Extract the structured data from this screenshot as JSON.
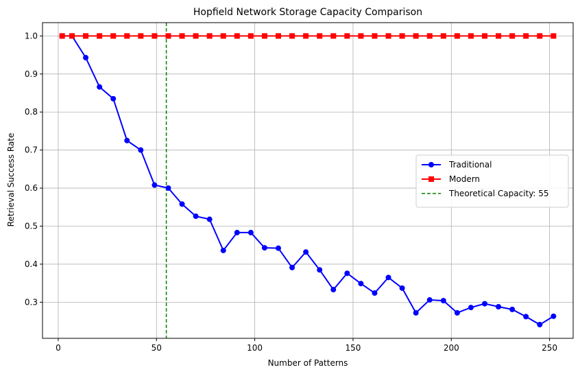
{
  "chart_data": {
    "type": "line",
    "title": "Hopfield Network Storage Capacity Comparison",
    "xlabel": "Number of Patterns",
    "ylabel": "Retrieval Success Rate",
    "xlim": [
      -8,
      262
    ],
    "ylim": [
      0.205,
      1.035
    ],
    "xticks": [
      0,
      50,
      100,
      150,
      200,
      250
    ],
    "yticks": [
      0.3,
      0.4,
      0.5,
      0.6,
      0.7,
      0.8,
      0.9,
      1.0
    ],
    "grid": true,
    "legend_position": "center-right",
    "x": [
      2,
      7,
      14,
      21,
      28,
      35,
      42,
      49,
      56,
      63,
      70,
      77,
      84,
      91,
      98,
      105,
      112,
      119,
      126,
      133,
      140,
      147,
      154,
      161,
      168,
      175,
      182,
      189,
      196,
      203,
      210,
      217,
      224,
      231,
      238,
      245,
      252
    ],
    "series": [
      {
        "name": "Traditional",
        "color": "#0000ff",
        "marker": "circle",
        "values": [
          1.0,
          1.0,
          0.943,
          0.866,
          0.835,
          0.725,
          0.7,
          0.608,
          0.6,
          0.558,
          0.526,
          0.518,
          0.436,
          0.483,
          0.483,
          0.443,
          0.442,
          0.391,
          0.432,
          0.385,
          0.333,
          0.376,
          0.349,
          0.324,
          0.365,
          0.337,
          0.272,
          0.306,
          0.304,
          0.272,
          0.286,
          0.296,
          0.288,
          0.281,
          0.262,
          0.241,
          0.263
        ]
      },
      {
        "name": "Modern",
        "color": "#ff0000",
        "marker": "square",
        "values": [
          1.0,
          1.0,
          1.0,
          1.0,
          1.0,
          1.0,
          1.0,
          1.0,
          1.0,
          1.0,
          1.0,
          1.0,
          1.0,
          1.0,
          1.0,
          1.0,
          1.0,
          1.0,
          1.0,
          1.0,
          1.0,
          1.0,
          1.0,
          1.0,
          1.0,
          1.0,
          1.0,
          1.0,
          1.0,
          1.0,
          1.0,
          1.0,
          1.0,
          1.0,
          1.0,
          1.0,
          1.0
        ]
      }
    ],
    "reference_line": {
      "name": "Theoretical Capacity: 55",
      "x": 55,
      "color": "#008000",
      "style": "dashed"
    }
  }
}
